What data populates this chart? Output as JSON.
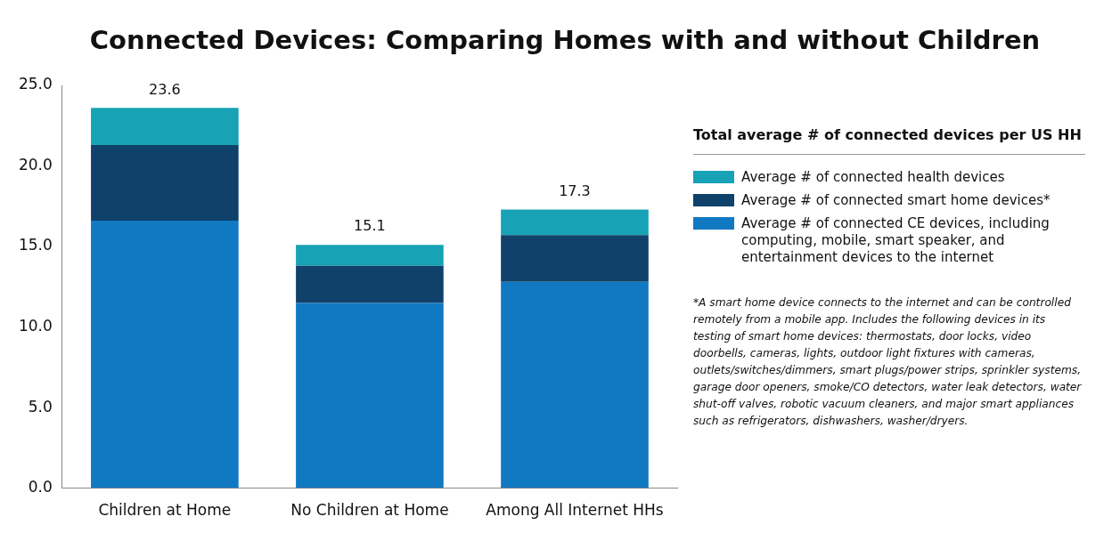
{
  "chart_data": {
    "type": "bar",
    "title": "Connected Devices: Comparing Homes with and without Children",
    "legend_title": "Total average # of connected devices per US HH",
    "categories": [
      "Children at Home",
      "No Children at Home",
      "Among All Internet HHs"
    ],
    "stacked": true,
    "legend": "right",
    "grid": false,
    "series": [
      {
        "name": "Average # of connected CE devices, including computing, mobile, smart speaker, and entertainment devices to the internet",
        "color": "#1178c2",
        "values": [
          16.6,
          11.5,
          12.8
        ]
      },
      {
        "name": "Average # of connected smart home devices*",
        "color": "#0f416b",
        "values": [
          4.7,
          2.3,
          2.9
        ]
      },
      {
        "name": "Average # of connected health devices",
        "color": "#17a2b5",
        "values": [
          2.3,
          1.3,
          1.6
        ]
      }
    ],
    "totals": [
      "23.6",
      "15.1",
      "17.3"
    ],
    "ylim": [
      0,
      25
    ],
    "yticks": [
      {
        "value": 0,
        "label": "0.0"
      },
      {
        "value": 5,
        "label": "5.0"
      },
      {
        "value": 10,
        "label": "10.0"
      },
      {
        "value": 15,
        "label": "15.0"
      },
      {
        "value": 20,
        "label": "20.0"
      },
      {
        "value": 25,
        "label": "25.0"
      }
    ],
    "annotations": [
      "*A smart home device connects to the internet and can be controlled remotely from a mobile app. Includes the following devices in its testing of smart home devices: thermostats, door locks, video doorbells, cameras, lights, outdoor light fixtures with cameras, outlets/switches/dimmers, smart plugs/power strips, sprinkler systems, garage door openers, smoke/CO detectors, water leak detectors, water shut-off valves, robotic vacuum cleaners, and major smart appliances such as refrigerators, dishwashers, washer/dryers."
    ]
  }
}
